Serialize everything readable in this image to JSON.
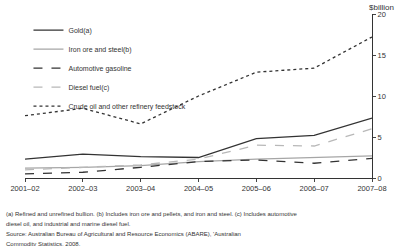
{
  "chart_data": {
    "type": "line",
    "y_label": "$billion",
    "categories": [
      "2001–02",
      "2002–03",
      "2003–04",
      "2004–05",
      "2005–06",
      "2006–07",
      "2007–08"
    ],
    "series": [
      {
        "name": "Gold(a)",
        "color": "#333333",
        "line_style": "solid",
        "values": [
          2.3,
          2.9,
          2.6,
          2.5,
          4.8,
          5.2,
          7.3
        ]
      },
      {
        "name": "Iron ore and steel(b)",
        "color": "#a6a6a6",
        "line_style": "solid",
        "values": [
          1.2,
          1.3,
          1.5,
          2.0,
          2.3,
          2.5,
          2.7
        ]
      },
      {
        "name": "Automotive gasoline",
        "color": "#333333",
        "line_style": "dash",
        "values": [
          0.5,
          0.7,
          1.3,
          2.0,
          2.2,
          1.8,
          2.4
        ]
      },
      {
        "name": "Diesel fuel(c)",
        "color": "#b8b8b8",
        "line_style": "dash",
        "values": [
          1.0,
          1.3,
          1.6,
          2.3,
          4.0,
          3.9,
          6.0
        ]
      },
      {
        "name": "Crude oil and other refinery feedstock",
        "color": "#333333",
        "line_style": "dot",
        "values": [
          7.6,
          8.5,
          6.6,
          10.0,
          12.9,
          13.4,
          17.2
        ]
      }
    ],
    "ylim": [
      0,
      20
    ],
    "yticks": [
      0,
      5,
      10,
      15,
      20
    ],
    "grid": false,
    "legend": "upper left",
    "annotations": [
      "(a) Refined and unrefined bullion. (b) Includes iron ore and pellets, and iron and steel. (c) Includes automotive",
      "diesel oil, and industrial and marine diesel fuel.",
      "Source: Australian Bureau of Agricultural and Resource Economics (ABARE), 'Australian",
      "Commodity Statistics, 2008."
    ]
  }
}
